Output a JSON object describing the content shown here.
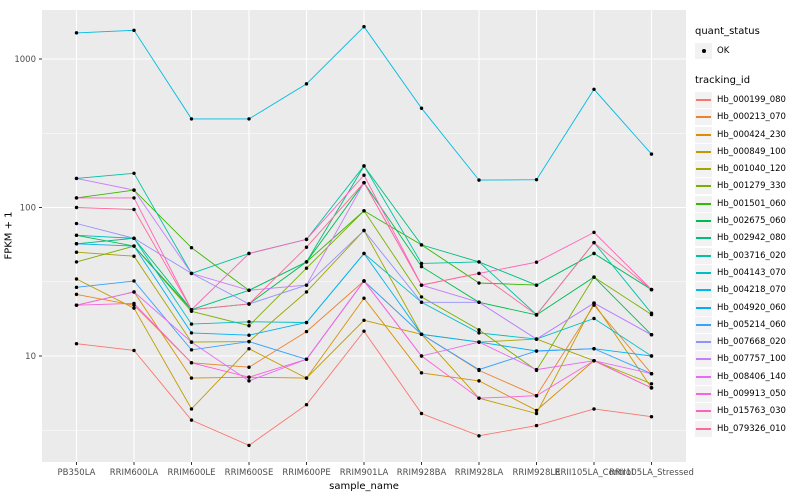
{
  "legend": {
    "quant_status": {
      "title": "quant_status",
      "items": [
        {
          "label": "OK",
          "symbol": "point"
        }
      ]
    },
    "tracking_id": {
      "title": "tracking_id"
    }
  },
  "chart_data": {
    "type": "line",
    "title": "",
    "xlabel": "sample_name",
    "ylabel": "FPKM + 1",
    "y_scale": "log10",
    "ylim": [
      2,
      2100
    ],
    "y_ticks": [
      10,
      100,
      1000
    ],
    "y_minor_gridlines": [
      3.162,
      31.62,
      316.23
    ],
    "grid": "on",
    "legend_position": "right",
    "panel_background": "#EBEBEB",
    "gridline_color": "#FFFFFF",
    "point_color": "#000000",
    "axis_text_color": "#4D4D4D",
    "categories": [
      "PB350LA",
      "RRIM600LA",
      "RRIM600LE",
      "RRIM600SE",
      "RRIM600PE",
      "RRIM901LA",
      "RRIM928BA",
      "RRIM928LA",
      "RRIM928LE",
      "RRII105LA_Control",
      "RRII105LA_Stressed"
    ],
    "series": [
      {
        "name": "Hb_000199_080",
        "color": "#F8766D",
        "values": [
          12.1,
          10.9,
          3.7,
          2.5,
          4.7,
          14.7,
          4.1,
          2.9,
          3.4,
          4.4,
          3.9
        ]
      },
      {
        "name": "Hb_000213_070",
        "color": "#EA8331",
        "values": [
          26,
          22,
          9,
          8.4,
          14.6,
          32,
          14,
          8,
          5.4,
          22,
          7.6
        ]
      },
      {
        "name": "Hb_000424_230",
        "color": "#D89000",
        "values": [
          22,
          27,
          7.1,
          7.2,
          7.1,
          24.5,
          7.7,
          6.8,
          4.3,
          9.3,
          6.1
        ]
      },
      {
        "name": "Hb_000849_100",
        "color": "#C09B00",
        "values": [
          33,
          21,
          4.4,
          11.2,
          7.1,
          17.4,
          14,
          5.2,
          4.1,
          22.7,
          6.1
        ]
      },
      {
        "name": "Hb_001040_120",
        "color": "#A3A500",
        "values": [
          50,
          47,
          12.4,
          12.5,
          27,
          70,
          14,
          12.4,
          13,
          9.3,
          6.5
        ]
      },
      {
        "name": "Hb_001279_330",
        "color": "#7CAE00",
        "values": [
          43,
          55,
          20,
          16,
          39,
          95,
          25,
          15,
          8,
          34,
          19
        ]
      },
      {
        "name": "Hb_001501_060",
        "color": "#39B600",
        "values": [
          116,
          131,
          53.6,
          27.7,
          43,
          95,
          56,
          31,
          30,
          49,
          28
        ]
      },
      {
        "name": "Hb_002675_060",
        "color": "#00BB4E",
        "values": [
          65,
          55,
          20.5,
          22.4,
          43,
          147,
          40,
          23,
          18.9,
          34,
          13.9
        ]
      },
      {
        "name": "Hb_002942_080",
        "color": "#00BF7D",
        "values": [
          57,
          62,
          20.5,
          27.7,
          43,
          190,
          56,
          43,
          30,
          49,
          28
        ]
      },
      {
        "name": "Hb_003716_020",
        "color": "#00C1A3",
        "values": [
          157,
          170,
          36,
          49,
          61,
          191,
          42,
          43,
          19,
          58,
          19.4
        ]
      },
      {
        "name": "Hb_004143_070",
        "color": "#00BFC4",
        "values": [
          65,
          62,
          16.4,
          17,
          16.8,
          49,
          23,
          14.3,
          13,
          17.9,
          10
        ]
      },
      {
        "name": "Hb_004218_070",
        "color": "#00BAE0",
        "values": [
          1500,
          1560,
          395,
          395,
          680,
          1650,
          466,
          153,
          154,
          625,
          229
        ]
      },
      {
        "name": "Hb_004920_060",
        "color": "#00B0F6",
        "values": [
          57,
          55,
          14.3,
          13.8,
          16.8,
          49,
          14,
          12.4,
          10.8,
          11.2,
          10
        ]
      },
      {
        "name": "Hb_005214_060",
        "color": "#35A2FF",
        "values": [
          29,
          32,
          11,
          12.5,
          9.5,
          32,
          14,
          8.1,
          10.8,
          11.2,
          7.6
        ]
      },
      {
        "name": "Hb_007668_020",
        "color": "#9590FF",
        "values": [
          78,
          62,
          36,
          22.4,
          30,
          70,
          23,
          23,
          13,
          22.7,
          13.9
        ]
      },
      {
        "name": "Hb_007757_100",
        "color": "#C77CFF",
        "values": [
          157,
          131,
          36,
          27.7,
          30,
          147,
          30,
          23,
          13,
          22.7,
          13.9
        ]
      },
      {
        "name": "Hb_008406_140",
        "color": "#E76BF3",
        "values": [
          22,
          27,
          12.4,
          6.8,
          9.5,
          32,
          10,
          12.4,
          8.1,
          9.3,
          7.6
        ]
      },
      {
        "name": "Hb_009913_050",
        "color": "#FA62DB",
        "values": [
          22,
          22.6,
          9,
          7.2,
          9.5,
          32,
          10,
          5.2,
          5.4,
          9.3,
          6.1
        ]
      },
      {
        "name": "Hb_015763_030",
        "color": "#FF62BC",
        "values": [
          116,
          116,
          20.5,
          49,
          61,
          165,
          30,
          36,
          42.8,
          68,
          28
        ]
      },
      {
        "name": "Hb_079326_010",
        "color": "#FF6A98",
        "values": [
          100,
          97,
          20.5,
          22.4,
          54,
          147,
          30,
          36,
          18.9,
          58,
          28
        ]
      }
    ]
  }
}
